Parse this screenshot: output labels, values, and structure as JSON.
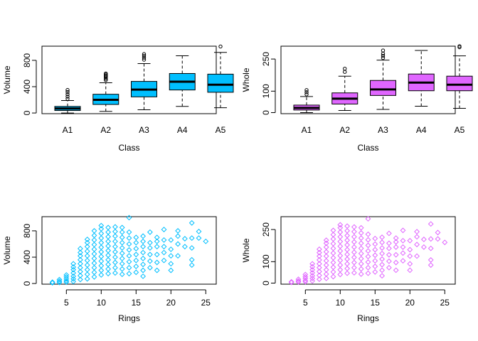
{
  "chart_data": [
    {
      "type": "boxplot",
      "xlabel": "Class",
      "ylabel": "Volume",
      "ylim": [
        -10,
        1015
      ],
      "yticks": [
        0,
        400,
        800
      ],
      "categories": [
        "A1",
        "A2",
        "A3",
        "A4",
        "A5"
      ],
      "color": "#00BFFF",
      "boxes": [
        {
          "whisker_low": 0,
          "q1": 38,
          "median": 68,
          "q3": 100,
          "whisker_high": 190,
          "outliers": [
            215,
            250,
            285,
            320,
            350
          ]
        },
        {
          "whisker_low": 25,
          "q1": 130,
          "median": 200,
          "q3": 285,
          "whisker_high": 460,
          "outliers": [
            500,
            520,
            540,
            555,
            570,
            585,
            600
          ]
        },
        {
          "whisker_low": 50,
          "q1": 245,
          "median": 355,
          "q3": 480,
          "whisker_high": 750,
          "outliers": [
            810,
            840,
            870,
            895
          ]
        },
        {
          "whisker_low": 100,
          "q1": 350,
          "median": 475,
          "q3": 600,
          "whisker_high": 870,
          "outliers": []
        },
        {
          "whisker_low": 80,
          "q1": 315,
          "median": 430,
          "q3": 590,
          "whisker_high": 920,
          "outliers": [
            1010
          ]
        }
      ]
    },
    {
      "type": "boxplot",
      "xlabel": "Class",
      "ylabel": "Whole",
      "ylim": [
        -5,
        310
      ],
      "yticks": [
        0,
        100,
        250
      ],
      "categories": [
        "A1",
        "A2",
        "A3",
        "A4",
        "A5"
      ],
      "color": "#E066FF",
      "boxes": [
        {
          "whisker_low": 0,
          "q1": 12,
          "median": 22,
          "q3": 35,
          "whisker_high": 75,
          "outliers": [
            85,
            95,
            105
          ]
        },
        {
          "whisker_low": 10,
          "q1": 40,
          "median": 65,
          "q3": 92,
          "whisker_high": 170,
          "outliers": [
            190,
            205
          ]
        },
        {
          "whisker_low": 15,
          "q1": 80,
          "median": 108,
          "q3": 150,
          "whisker_high": 245,
          "outliers": [
            255,
            265,
            275,
            290
          ]
        },
        {
          "whisker_low": 30,
          "q1": 102,
          "median": 140,
          "q3": 180,
          "whisker_high": 290,
          "outliers": []
        },
        {
          "whisker_low": 20,
          "q1": 102,
          "median": 130,
          "q3": 170,
          "whisker_high": 265,
          "outliers": [
            305,
            310
          ]
        }
      ]
    },
    {
      "type": "scatter",
      "xlabel": "Rings",
      "ylabel": "Volume",
      "xlim": [
        1.5,
        26.5
      ],
      "ylim": [
        -10,
        1015
      ],
      "xticks": [
        5,
        10,
        15,
        20,
        25
      ],
      "yticks": [
        0,
        400,
        800
      ],
      "color": "#00BFFF",
      "marker": "diamond-open",
      "points": [
        [
          3,
          10
        ],
        [
          3,
          20
        ],
        [
          4,
          15
        ],
        [
          4,
          35
        ],
        [
          4,
          60
        ],
        [
          5,
          20
        ],
        [
          5,
          40
        ],
        [
          5,
          70
        ],
        [
          5,
          100
        ],
        [
          5,
          130
        ],
        [
          6,
          30
        ],
        [
          6,
          70
        ],
        [
          6,
          110
        ],
        [
          6,
          160
        ],
        [
          6,
          210
        ],
        [
          6,
          250
        ],
        [
          6,
          300
        ],
        [
          7,
          60
        ],
        [
          7,
          120
        ],
        [
          7,
          180
        ],
        [
          7,
          240
        ],
        [
          7,
          300
        ],
        [
          7,
          360
        ],
        [
          7,
          420
        ],
        [
          7,
          470
        ],
        [
          7,
          530
        ],
        [
          8,
          70
        ],
        [
          8,
          140
        ],
        [
          8,
          210
        ],
        [
          8,
          280
        ],
        [
          8,
          350
        ],
        [
          8,
          420
        ],
        [
          8,
          490
        ],
        [
          8,
          560
        ],
        [
          8,
          620
        ],
        [
          8,
          670
        ],
        [
          9,
          100
        ],
        [
          9,
          170
        ],
        [
          9,
          240
        ],
        [
          9,
          310
        ],
        [
          9,
          380
        ],
        [
          9,
          450
        ],
        [
          9,
          520
        ],
        [
          9,
          590
        ],
        [
          9,
          660
        ],
        [
          9,
          730
        ],
        [
          9,
          800
        ],
        [
          10,
          130
        ],
        [
          10,
          200
        ],
        [
          10,
          270
        ],
        [
          10,
          340
        ],
        [
          10,
          410
        ],
        [
          10,
          480
        ],
        [
          10,
          550
        ],
        [
          10,
          620
        ],
        [
          10,
          690
        ],
        [
          10,
          760
        ],
        [
          10,
          830
        ],
        [
          10,
          880
        ],
        [
          11,
          150
        ],
        [
          11,
          220
        ],
        [
          11,
          290
        ],
        [
          11,
          360
        ],
        [
          11,
          430
        ],
        [
          11,
          500
        ],
        [
          11,
          570
        ],
        [
          11,
          640
        ],
        [
          11,
          710
        ],
        [
          11,
          780
        ],
        [
          11,
          850
        ],
        [
          12,
          160
        ],
        [
          12,
          240
        ],
        [
          12,
          320
        ],
        [
          12,
          400
        ],
        [
          12,
          480
        ],
        [
          12,
          560
        ],
        [
          12,
          640
        ],
        [
          12,
          720
        ],
        [
          12,
          790
        ],
        [
          12,
          860
        ],
        [
          13,
          140
        ],
        [
          13,
          220
        ],
        [
          13,
          300
        ],
        [
          13,
          380
        ],
        [
          13,
          460
        ],
        [
          13,
          540
        ],
        [
          13,
          620
        ],
        [
          13,
          700
        ],
        [
          13,
          780
        ],
        [
          13,
          850
        ],
        [
          14,
          150
        ],
        [
          14,
          240
        ],
        [
          14,
          330
        ],
        [
          14,
          420
        ],
        [
          14,
          510
        ],
        [
          14,
          600
        ],
        [
          14,
          690
        ],
        [
          14,
          780
        ],
        [
          14,
          1000
        ],
        [
          15,
          170
        ],
        [
          15,
          260
        ],
        [
          15,
          350
        ],
        [
          15,
          440
        ],
        [
          15,
          530
        ],
        [
          15,
          620
        ],
        [
          15,
          700
        ],
        [
          16,
          110
        ],
        [
          16,
          200
        ],
        [
          16,
          290
        ],
        [
          16,
          380
        ],
        [
          16,
          470
        ],
        [
          16,
          560
        ],
        [
          16,
          640
        ],
        [
          16,
          720
        ],
        [
          17,
          240
        ],
        [
          17,
          340
        ],
        [
          17,
          440
        ],
        [
          17,
          540
        ],
        [
          17,
          620
        ],
        [
          17,
          780
        ],
        [
          18,
          200
        ],
        [
          18,
          320
        ],
        [
          18,
          440
        ],
        [
          18,
          560
        ],
        [
          18,
          640
        ],
        [
          18,
          700
        ],
        [
          19,
          350
        ],
        [
          19,
          470
        ],
        [
          19,
          560
        ],
        [
          19,
          660
        ],
        [
          19,
          820
        ],
        [
          20,
          200
        ],
        [
          20,
          300
        ],
        [
          20,
          420
        ],
        [
          20,
          520
        ],
        [
          20,
          660
        ],
        [
          21,
          420
        ],
        [
          21,
          600
        ],
        [
          21,
          720
        ],
        [
          21,
          800
        ],
        [
          22,
          560
        ],
        [
          22,
          680
        ],
        [
          23,
          280
        ],
        [
          23,
          360
        ],
        [
          23,
          540
        ],
        [
          23,
          690
        ],
        [
          23,
          920
        ],
        [
          24,
          690
        ],
        [
          24,
          790
        ],
        [
          25,
          640
        ]
      ]
    },
    {
      "type": "scatter",
      "xlabel": "Rings",
      "ylabel": "Whole",
      "xlim": [
        1.5,
        26.5
      ],
      "ylim": [
        -5,
        310
      ],
      "xticks": [
        5,
        10,
        15,
        20,
        25
      ],
      "yticks": [
        0,
        100,
        250
      ],
      "color": "#E066FF",
      "marker": "diamond-open",
      "points": [
        [
          3,
          3
        ],
        [
          3,
          6
        ],
        [
          4,
          5
        ],
        [
          4,
          10
        ],
        [
          4,
          18
        ],
        [
          5,
          6
        ],
        [
          5,
          12
        ],
        [
          5,
          22
        ],
        [
          5,
          30
        ],
        [
          5,
          40
        ],
        [
          6,
          10
        ],
        [
          6,
          22
        ],
        [
          6,
          34
        ],
        [
          6,
          48
        ],
        [
          6,
          62
        ],
        [
          6,
          76
        ],
        [
          6,
          90
        ],
        [
          7,
          18
        ],
        [
          7,
          36
        ],
        [
          7,
          54
        ],
        [
          7,
          72
        ],
        [
          7,
          90
        ],
        [
          7,
          108
        ],
        [
          7,
          126
        ],
        [
          7,
          142
        ],
        [
          7,
          158
        ],
        [
          8,
          22
        ],
        [
          8,
          42
        ],
        [
          8,
          62
        ],
        [
          8,
          84
        ],
        [
          8,
          104
        ],
        [
          8,
          126
        ],
        [
          8,
          146
        ],
        [
          8,
          168
        ],
        [
          8,
          186
        ],
        [
          8,
          200
        ],
        [
          9,
          30
        ],
        [
          9,
          52
        ],
        [
          9,
          74
        ],
        [
          9,
          96
        ],
        [
          9,
          118
        ],
        [
          9,
          140
        ],
        [
          9,
          162
        ],
        [
          9,
          184
        ],
        [
          9,
          206
        ],
        [
          9,
          226
        ],
        [
          9,
          246
        ],
        [
          10,
          40
        ],
        [
          10,
          62
        ],
        [
          10,
          84
        ],
        [
          10,
          106
        ],
        [
          10,
          128
        ],
        [
          10,
          150
        ],
        [
          10,
          172
        ],
        [
          10,
          194
        ],
        [
          10,
          216
        ],
        [
          10,
          238
        ],
        [
          10,
          258
        ],
        [
          10,
          272
        ],
        [
          11,
          46
        ],
        [
          11,
          68
        ],
        [
          11,
          90
        ],
        [
          11,
          112
        ],
        [
          11,
          134
        ],
        [
          11,
          156
        ],
        [
          11,
          178
        ],
        [
          11,
          200
        ],
        [
          11,
          222
        ],
        [
          11,
          244
        ],
        [
          11,
          266
        ],
        [
          12,
          48
        ],
        [
          12,
          72
        ],
        [
          12,
          96
        ],
        [
          12,
          120
        ],
        [
          12,
          144
        ],
        [
          12,
          168
        ],
        [
          12,
          192
        ],
        [
          12,
          216
        ],
        [
          12,
          240
        ],
        [
          12,
          262
        ],
        [
          13,
          42
        ],
        [
          13,
          66
        ],
        [
          13,
          90
        ],
        [
          13,
          114
        ],
        [
          13,
          138
        ],
        [
          13,
          162
        ],
        [
          13,
          186
        ],
        [
          13,
          210
        ],
        [
          13,
          234
        ],
        [
          13,
          258
        ],
        [
          14,
          46
        ],
        [
          14,
          72
        ],
        [
          14,
          98
        ],
        [
          14,
          124
        ],
        [
          14,
          150
        ],
        [
          14,
          176
        ],
        [
          14,
          202
        ],
        [
          14,
          228
        ],
        [
          14,
          300
        ],
        [
          15,
          52
        ],
        [
          15,
          78
        ],
        [
          15,
          104
        ],
        [
          15,
          130
        ],
        [
          15,
          156
        ],
        [
          15,
          182
        ],
        [
          15,
          208
        ],
        [
          16,
          34
        ],
        [
          16,
          60
        ],
        [
          16,
          86
        ],
        [
          16,
          112
        ],
        [
          16,
          138
        ],
        [
          16,
          164
        ],
        [
          16,
          190
        ],
        [
          16,
          214
        ],
        [
          17,
          72
        ],
        [
          17,
          102
        ],
        [
          17,
          132
        ],
        [
          17,
          162
        ],
        [
          17,
          186
        ],
        [
          17,
          232
        ],
        [
          18,
          60
        ],
        [
          18,
          96
        ],
        [
          18,
          132
        ],
        [
          18,
          168
        ],
        [
          18,
          192
        ],
        [
          18,
          210
        ],
        [
          19,
          104
        ],
        [
          19,
          140
        ],
        [
          19,
          168
        ],
        [
          19,
          198
        ],
        [
          19,
          246
        ],
        [
          20,
          60
        ],
        [
          20,
          90
        ],
        [
          20,
          126
        ],
        [
          20,
          156
        ],
        [
          20,
          198
        ],
        [
          21,
          126
        ],
        [
          21,
          180
        ],
        [
          21,
          216
        ],
        [
          21,
          240
        ],
        [
          22,
          168
        ],
        [
          22,
          204
        ],
        [
          23,
          84
        ],
        [
          23,
          108
        ],
        [
          23,
          162
        ],
        [
          23,
          206
        ],
        [
          23,
          276
        ],
        [
          24,
          206
        ],
        [
          24,
          236
        ],
        [
          25,
          190
        ]
      ]
    }
  ]
}
